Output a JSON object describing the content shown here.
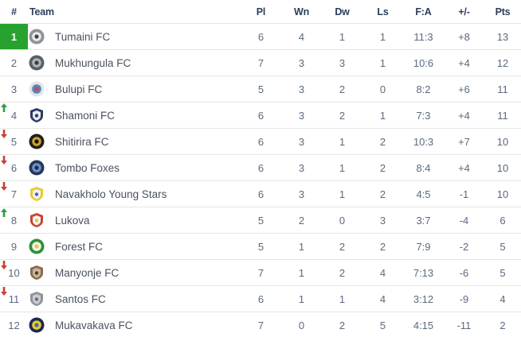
{
  "table": {
    "headers": {
      "rank": "#",
      "team": "Team",
      "pl": "Pl",
      "wn": "Wn",
      "dw": "Dw",
      "ls": "Ls",
      "fa": "F:A",
      "diff": "+/-",
      "pts": "Pts"
    },
    "rows": [
      {
        "rank": "1",
        "team": "Tumaini FC",
        "pl": "6",
        "wn": "4",
        "dw": "1",
        "ls": "1",
        "fa": "11:3",
        "diff": "+8",
        "pts": "13",
        "movement": "none",
        "highlight": true,
        "logo_shape": "circle",
        "logo_colors": [
          "#8d939c",
          "#e9e9e9",
          "#3f4246"
        ]
      },
      {
        "rank": "2",
        "team": "Mukhungula FC",
        "pl": "7",
        "wn": "3",
        "dw": "3",
        "ls": "1",
        "fa": "10:6",
        "diff": "+4",
        "pts": "12",
        "movement": "none",
        "highlight": false,
        "logo_shape": "circle",
        "logo_colors": [
          "#5a5f66",
          "#b0b4ba",
          "#3a3e44"
        ]
      },
      {
        "rank": "3",
        "team": "Bulupi FC",
        "pl": "5",
        "wn": "3",
        "dw": "2",
        "ls": "0",
        "fa": "8:2",
        "diff": "+6",
        "pts": "11",
        "movement": "none",
        "highlight": false,
        "logo_shape": "circle",
        "logo_colors": [
          "#dfe6ee",
          "#5b84b8",
          "#cf4a43"
        ]
      },
      {
        "rank": "4",
        "team": "Shamoni FC",
        "pl": "6",
        "wn": "3",
        "dw": "2",
        "ls": "1",
        "fa": "7:3",
        "diff": "+4",
        "pts": "11",
        "movement": "up",
        "highlight": false,
        "logo_shape": "shield",
        "logo_colors": [
          "#2c3a64",
          "#e8ecf2",
          "#2c3a64"
        ]
      },
      {
        "rank": "5",
        "team": "Shitirira FC",
        "pl": "6",
        "wn": "3",
        "dw": "1",
        "ls": "2",
        "fa": "10:3",
        "diff": "+7",
        "pts": "10",
        "movement": "down",
        "highlight": false,
        "logo_shape": "circle",
        "logo_colors": [
          "#211f1c",
          "#caa22e",
          "#14110d"
        ]
      },
      {
        "rank": "6",
        "team": "Tombo Foxes",
        "pl": "6",
        "wn": "3",
        "dw": "1",
        "ls": "2",
        "fa": "8:4",
        "diff": "+4",
        "pts": "10",
        "movement": "down",
        "highlight": false,
        "logo_shape": "circle",
        "logo_colors": [
          "#27355c",
          "#6a93c4",
          "#1d2a4a"
        ]
      },
      {
        "rank": "7",
        "team": "Navakholo Young Stars",
        "pl": "6",
        "wn": "3",
        "dw": "1",
        "ls": "2",
        "fa": "4:5",
        "diff": "-1",
        "pts": "10",
        "movement": "down",
        "highlight": false,
        "logo_shape": "shield",
        "logo_colors": [
          "#e9c832",
          "#eef2f6",
          "#3f6cae"
        ]
      },
      {
        "rank": "8",
        "team": "Lukova",
        "pl": "5",
        "wn": "2",
        "dw": "0",
        "ls": "3",
        "fa": "3:7",
        "diff": "-4",
        "pts": "6",
        "movement": "up",
        "highlight": false,
        "logo_shape": "shield",
        "logo_colors": [
          "#c8452f",
          "#f2f3f5",
          "#e9c832"
        ]
      },
      {
        "rank": "9",
        "team": "Forest FC",
        "pl": "5",
        "wn": "1",
        "dw": "2",
        "ls": "2",
        "fa": "7:9",
        "diff": "-2",
        "pts": "5",
        "movement": "none",
        "highlight": false,
        "logo_shape": "circle",
        "logo_colors": [
          "#2f8f3e",
          "#f0f4ea",
          "#e9c832"
        ]
      },
      {
        "rank": "10",
        "team": "Manyonje FC",
        "pl": "7",
        "wn": "1",
        "dw": "2",
        "ls": "4",
        "fa": "7:13",
        "diff": "-6",
        "pts": "5",
        "movement": "down",
        "highlight": false,
        "logo_shape": "shield",
        "logo_colors": [
          "#8a6b4e",
          "#c9b79a",
          "#453c33"
        ]
      },
      {
        "rank": "11",
        "team": "Santos FC",
        "pl": "6",
        "wn": "1",
        "dw": "1",
        "ls": "4",
        "fa": "3:12",
        "diff": "-9",
        "pts": "4",
        "movement": "down",
        "highlight": false,
        "logo_shape": "shield",
        "logo_colors": [
          "#8f9399",
          "#c9ccd1",
          "#6a6e74"
        ]
      },
      {
        "rank": "12",
        "team": "Mukavakava FC",
        "pl": "7",
        "wn": "0",
        "dw": "2",
        "ls": "5",
        "fa": "4:15",
        "diff": "-11",
        "pts": "2",
        "movement": "none",
        "highlight": false,
        "logo_shape": "circle",
        "logo_colors": [
          "#1c2b52",
          "#e9c832",
          "#3f6cae"
        ]
      }
    ]
  },
  "colors": {
    "highlight_green": "#28a22e",
    "arrow_up": "#2da044",
    "arrow_down": "#c94034",
    "header_text": "#2e3d59",
    "stat_text": "#5a6a7e",
    "team_text": "#4a5260",
    "divider": "#e6e6e6"
  }
}
